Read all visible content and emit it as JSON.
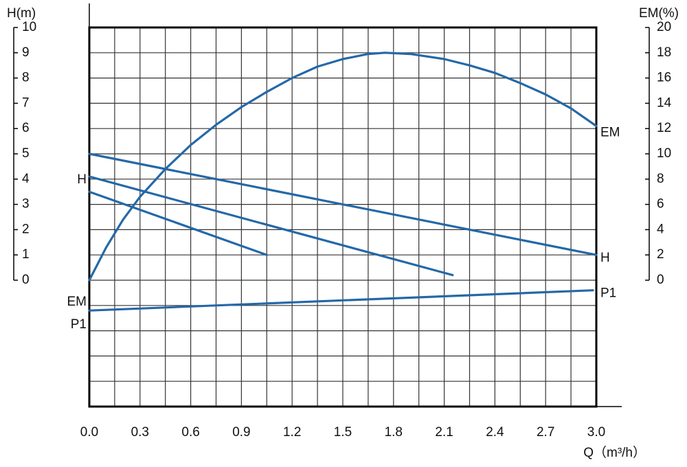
{
  "chart_data": {
    "type": "line",
    "x_label": "Q（m³/h）",
    "y_label": "H(m)",
    "y2_label": "EM(%)",
    "xlim": [
      0,
      3
    ],
    "ylim": [
      -5,
      10
    ],
    "y2lim": [
      -10,
      20
    ],
    "xticks": [
      {
        "value": 0,
        "label": "0.0"
      },
      0.3,
      0.6,
      0.9,
      1.2,
      1.5,
      1.8,
      2.1,
      2.4,
      2.7,
      {
        "value": 3,
        "label": "3.0"
      }
    ],
    "x_minor_ticks": [
      0.15,
      0.45,
      0.75,
      1.05,
      1.35,
      1.65,
      1.95,
      2.25,
      2.55,
      2.85
    ],
    "yticks": [
      0,
      1,
      2,
      3,
      4,
      5,
      6,
      7,
      8,
      9,
      10
    ],
    "y_minor_ticks": [
      -4,
      -3,
      -2,
      -1
    ],
    "y2ticks": [
      0,
      2,
      4,
      6,
      8,
      10,
      12,
      14,
      16,
      18,
      20
    ],
    "grid": true,
    "color": "#2468a8",
    "series": [
      {
        "name": "EM",
        "axis": "y2",
        "label_at": [
          "start",
          "end"
        ],
        "x": [
          0,
          0.1,
          0.2,
          0.3,
          0.45,
          0.6,
          0.75,
          0.9,
          1.05,
          1.2,
          1.35,
          1.5,
          1.65,
          1.75,
          1.9,
          2.1,
          2.25,
          2.4,
          2.55,
          2.7,
          2.85,
          3.0
        ],
        "values": [
          0,
          2.6,
          4.8,
          6.6,
          8.8,
          10.7,
          12.3,
          13.7,
          14.9,
          16.0,
          16.9,
          17.5,
          17.9,
          18.0,
          17.9,
          17.5,
          17.0,
          16.4,
          15.6,
          14.7,
          13.6,
          12.2
        ]
      },
      {
        "name": "H",
        "label_at": [
          "end"
        ],
        "x": [
          0,
          3
        ],
        "values": [
          5,
          1
        ]
      },
      {
        "name": "H",
        "label_at": [
          "start"
        ],
        "x": [
          0,
          2.15
        ],
        "values": [
          4.1,
          0.2
        ]
      },
      {
        "x": [
          0,
          1.05
        ],
        "values": [
          3.5,
          1.0
        ]
      },
      {
        "name": "P1",
        "label_at": [
          "start",
          "end"
        ],
        "x": [
          0,
          2.98
        ],
        "values": [
          -1.2,
          -0.4
        ]
      }
    ]
  }
}
